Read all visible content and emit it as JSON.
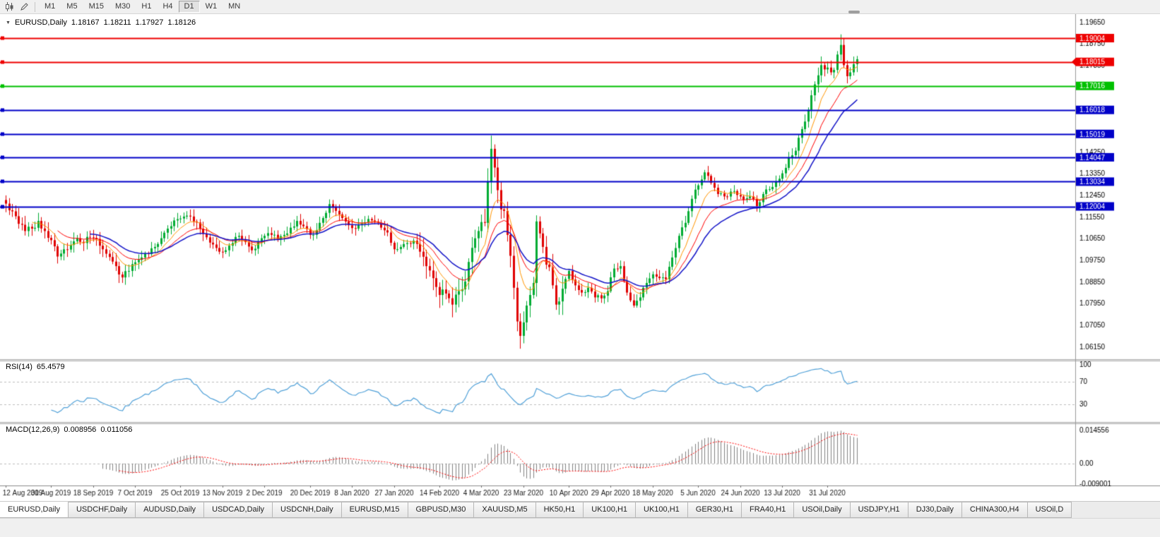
{
  "toolbar": {
    "timeframes": [
      "M1",
      "M5",
      "M15",
      "M30",
      "H1",
      "H4",
      "D1",
      "W1",
      "MN"
    ],
    "active": "D1"
  },
  "tabs": {
    "items": [
      "EURUSD,Daily",
      "USDCHF,Daily",
      "AUDUSD,Daily",
      "USDCAD,Daily",
      "USDCNH,Daily",
      "EURUSD,M15",
      "GBPUSD,M30",
      "XAUUSD,M5",
      "HK50,H1",
      "UK100,H1",
      "UK100,H1",
      "GER30,H1",
      "FRA40,H1",
      "USOil,Daily",
      "USDJPY,H1",
      "DJ30,Daily",
      "CHINA300,H4",
      "USOil,D"
    ],
    "active_index": 0
  },
  "chart_data": {
    "type": "candlestick",
    "symbol": "EURUSD",
    "period": "Daily",
    "symbol_period": "EURUSD,Daily",
    "ohlc_display": {
      "open": "1.18167",
      "high": "1.18211",
      "low": "1.17927",
      "close": "1.18126"
    },
    "price_axis": {
      "top_label": 1.1965,
      "step": 0.009,
      "labels_end": 1.0615,
      "decimals": 5
    },
    "colors": {
      "up": "#00AB32",
      "down": "#E00000",
      "axis_text": "#000000",
      "background": "#FFFFFF"
    },
    "levels": [
      {
        "price": 1.19004,
        "label": "1.19004",
        "color": "#EE0000"
      },
      {
        "price": 1.18015,
        "label": "1.18015",
        "color": "#EE0000",
        "current": true
      },
      {
        "price": 1.17016,
        "label": "1.17016",
        "color": "#00C000"
      },
      {
        "price": 1.16018,
        "label": "1.16018",
        "color": "#0000C8"
      },
      {
        "price": 1.15019,
        "label": "1.15019",
        "color": "#0000C8"
      },
      {
        "price": 1.14047,
        "label": "1.14047",
        "color": "#0000C8"
      },
      {
        "price": 1.13034,
        "label": "1.13034",
        "color": "#0000C8"
      },
      {
        "price": 1.12004,
        "label": "1.12004",
        "color": "#0000C8"
      }
    ],
    "moving_averages": [
      {
        "type": "ema",
        "period": 8,
        "color": "#FF9500",
        "width": 1
      },
      {
        "type": "ema",
        "period": 16,
        "color": "#FF0000",
        "width": 1
      },
      {
        "type": "ema",
        "period": 26,
        "color": "#1414C8",
        "width": 1.5
      }
    ],
    "candle_count": 264,
    "x_axis_labels": [
      {
        "i": 0,
        "t": "12 Aug 2019"
      },
      {
        "i": 14,
        "t": "30 Aug 2019"
      },
      {
        "i": 27,
        "t": "18 Sep 2019"
      },
      {
        "i": 40,
        "t": "7 Oct 2019"
      },
      {
        "i": 54,
        "t": "25 Oct 2019"
      },
      {
        "i": 67,
        "t": "13 Nov 2019"
      },
      {
        "i": 80,
        "t": "2 Dec 2019"
      },
      {
        "i": 94,
        "t": "20 Dec 2019"
      },
      {
        "i": 107,
        "t": "8 Jan 2020"
      },
      {
        "i": 120,
        "t": "27 Jan 2020"
      },
      {
        "i": 134,
        "t": "14 Feb 2020"
      },
      {
        "i": 147,
        "t": "4 Mar 2020"
      },
      {
        "i": 160,
        "t": "23 Mar 2020"
      },
      {
        "i": 174,
        "t": "10 Apr 2020"
      },
      {
        "i": 187,
        "t": "29 Apr 2020"
      },
      {
        "i": 200,
        "t": "18 May 2020"
      },
      {
        "i": 214,
        "t": "5 Jun 2020"
      },
      {
        "i": 227,
        "t": "24 Jun 2020"
      },
      {
        "i": 240,
        "t": "13 Jul 2020"
      },
      {
        "i": 254,
        "t": "31 Jul 2020"
      }
    ],
    "anchor_closes": [
      [
        0,
        1.1212
      ],
      [
        2,
        1.118
      ],
      [
        4,
        1.1128
      ],
      [
        6,
        1.1098
      ],
      [
        8,
        1.1108
      ],
      [
        10,
        1.114
      ],
      [
        12,
        1.1098
      ],
      [
        14,
        1.106
      ],
      [
        16,
        1.0992
      ],
      [
        18,
        1.1022
      ],
      [
        20,
        1.104
      ],
      [
        22,
        1.1068
      ],
      [
        24,
        1.1048
      ],
      [
        26,
        1.1072
      ],
      [
        28,
        1.1065
      ],
      [
        30,
        1.1022
      ],
      [
        32,
        1.099
      ],
      [
        34,
        1.0952
      ],
      [
        36,
        1.0905
      ],
      [
        38,
        1.0932
      ],
      [
        40,
        1.0968
      ],
      [
        42,
        1.0988
      ],
      [
        44,
        1.1002
      ],
      [
        46,
        1.1032
      ],
      [
        48,
        1.1068
      ],
      [
        50,
        1.1108
      ],
      [
        52,
        1.1142
      ],
      [
        54,
        1.115
      ],
      [
        56,
        1.1162
      ],
      [
        58,
        1.1138
      ],
      [
        60,
        1.1108
      ],
      [
        62,
        1.1072
      ],
      [
        64,
        1.1042
      ],
      [
        66,
        1.1012
      ],
      [
        68,
        1.1018
      ],
      [
        70,
        1.1048
      ],
      [
        72,
        1.1078
      ],
      [
        74,
        1.1052
      ],
      [
        76,
        1.1018
      ],
      [
        78,
        1.1052
      ],
      [
        80,
        1.1078
      ],
      [
        82,
        1.1082
      ],
      [
        84,
        1.1062
      ],
      [
        86,
        1.1082
      ],
      [
        88,
        1.1112
      ],
      [
        90,
        1.114
      ],
      [
        92,
        1.1118
      ],
      [
        94,
        1.1082
      ],
      [
        96,
        1.1102
      ],
      [
        98,
        1.1152
      ],
      [
        100,
        1.121
      ],
      [
        102,
        1.1182
      ],
      [
        104,
        1.1152
      ],
      [
        106,
        1.1122
      ],
      [
        108,
        1.1108
      ],
      [
        110,
        1.1128
      ],
      [
        112,
        1.1148
      ],
      [
        114,
        1.1138
      ],
      [
        116,
        1.1112
      ],
      [
        118,
        1.1092
      ],
      [
        120,
        1.1022
      ],
      [
        122,
        1.1032
      ],
      [
        124,
        1.1048
      ],
      [
        126,
        1.1058
      ],
      [
        128,
        1.1012
      ],
      [
        130,
        1.0952
      ],
      [
        132,
        1.0902
      ],
      [
        134,
        1.0832
      ],
      [
        136,
        1.0838
      ],
      [
        138,
        1.0792
      ],
      [
        140,
        1.0848
      ],
      [
        142,
        1.0888
      ],
      [
        144,
        1.1028
      ],
      [
        146,
        1.1098
      ],
      [
        148,
        1.1132
      ],
      [
        150,
        1.144
      ],
      [
        151,
        1.1362
      ],
      [
        152,
        1.1268
      ],
      [
        153,
        1.1188
      ],
      [
        154,
        1.1182
      ],
      [
        155,
        1.1082
      ],
      [
        156,
        1.0995
      ],
      [
        157,
        1.0862
      ],
      [
        158,
        1.0722
      ],
      [
        159,
        1.0662
      ],
      [
        160,
        1.0718
      ],
      [
        161,
        1.0788
      ],
      [
        162,
        1.0832
      ],
      [
        163,
        1.0882
      ],
      [
        164,
        1.1138
      ],
      [
        165,
        1.1088
      ],
      [
        166,
        1.1032
      ],
      [
        167,
        1.0958
      ],
      [
        168,
        1.0948
      ],
      [
        170,
        1.0792
      ],
      [
        172,
        1.0858
      ],
      [
        174,
        1.0932
      ],
      [
        176,
        1.0872
      ],
      [
        178,
        1.0842
      ],
      [
        180,
        1.0862
      ],
      [
        182,
        1.0822
      ],
      [
        184,
        1.0818
      ],
      [
        186,
        1.0848
      ],
      [
        188,
        1.0942
      ],
      [
        190,
        1.0952
      ],
      [
        192,
        1.0842
      ],
      [
        194,
        1.0788
      ],
      [
        196,
        1.0822
      ],
      [
        198,
        1.0882
      ],
      [
        200,
        1.0918
      ],
      [
        202,
        1.0902
      ],
      [
        204,
        1.0898
      ],
      [
        206,
        1.0988
      ],
      [
        208,
        1.1078
      ],
      [
        210,
        1.1132
      ],
      [
        212,
        1.1232
      ],
      [
        214,
        1.1288
      ],
      [
        216,
        1.1342
      ],
      [
        218,
        1.1298
      ],
      [
        220,
        1.1252
      ],
      [
        222,
        1.1242
      ],
      [
        224,
        1.1262
      ],
      [
        226,
        1.1248
      ],
      [
        228,
        1.1228
      ],
      [
        230,
        1.1242
      ],
      [
        232,
        1.1202
      ],
      [
        234,
        1.1252
      ],
      [
        236,
        1.1272
      ],
      [
        238,
        1.1302
      ],
      [
        240,
        1.1338
      ],
      [
        242,
        1.1402
      ],
      [
        244,
        1.1432
      ],
      [
        246,
        1.1522
      ],
      [
        248,
        1.1602
      ],
      [
        250,
        1.1708
      ],
      [
        252,
        1.1788
      ],
      [
        254,
        1.1778
      ],
      [
        255,
        1.1758
      ],
      [
        256,
        1.1768
      ],
      [
        257,
        1.1832
      ],
      [
        258,
        1.1872
      ],
      [
        259,
        1.1788
      ],
      [
        260,
        1.1742
      ],
      [
        261,
        1.1758
      ],
      [
        262,
        1.1792
      ],
      [
        263,
        1.18126
      ]
    ],
    "wick_overrides": {
      "134": {
        "l": 1.0778
      },
      "150": {
        "h": 1.1495
      },
      "159": {
        "l": 1.0636
      },
      "258": {
        "h": 1.1916
      }
    },
    "volatility_zones": [
      {
        "from": 0,
        "to": 40,
        "mult": 1.25
      },
      {
        "from": 128,
        "to": 172,
        "mult": 1.9
      },
      {
        "from": 244,
        "to": 263,
        "mult": 1.35
      }
    ],
    "rsi": {
      "label": "RSI(14)",
      "value": "65.4579",
      "period": 14,
      "levels": [
        100,
        70,
        30
      ],
      "color": "#4FA0D8"
    },
    "macd": {
      "label": "MACD(12,26,9)",
      "value_main": "0.008956",
      "value_signal": "0.011056",
      "fast": 12,
      "slow": 26,
      "signal": 9,
      "axis_top": "0.014556",
      "axis_zero": "0.00",
      "axis_bottom": "-0.009001",
      "histogram_color": "#828282",
      "signal_color": "#FF0000"
    }
  }
}
